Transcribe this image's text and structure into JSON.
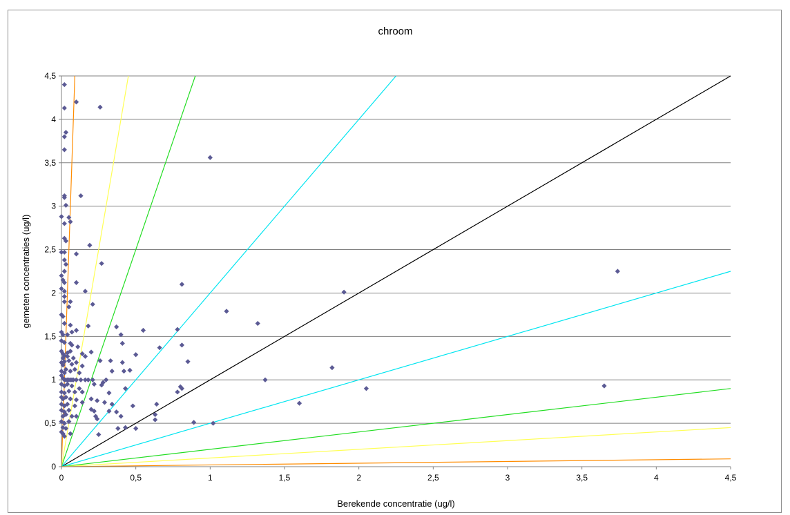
{
  "chart_data": {
    "type": "scatter",
    "title": "chroom",
    "xlabel": "Berekende concentratie (ug/l)",
    "ylabel": "gemeten concentraties (ug/l)",
    "xlim": [
      0,
      4.5
    ],
    "ylim": [
      0,
      4.5
    ],
    "x_ticks": [
      "0",
      "0,5",
      "1",
      "1,5",
      "2",
      "2,5",
      "3",
      "3,5",
      "4",
      "4,5"
    ],
    "y_ticks": [
      "0",
      "0,5",
      "1",
      "1,5",
      "2",
      "2,5",
      "3",
      "3,5",
      "4",
      "4,5"
    ],
    "grid": "horizontal",
    "legend": "none",
    "marker_color": "#5b5a94",
    "reference_lines": [
      {
        "slope": 1,
        "color": "#000000"
      },
      {
        "slope": 2,
        "color": "#00e5f0"
      },
      {
        "slope": 0.5,
        "color": "#00e5f0"
      },
      {
        "slope": 5,
        "color": "#22dd22"
      },
      {
        "slope": 0.2,
        "color": "#22dd22"
      },
      {
        "slope": 10,
        "color": "#ffff55"
      },
      {
        "slope": 0.1,
        "color": "#ffff55"
      },
      {
        "slope": 50,
        "color": "#ff8c00"
      },
      {
        "slope": 0.02,
        "color": "#ff8c00"
      }
    ],
    "points": [
      [
        0.02,
        4.4
      ],
      [
        0.02,
        4.13
      ],
      [
        0.1,
        4.2
      ],
      [
        0.26,
        4.14
      ],
      [
        0.03,
        3.85
      ],
      [
        0.02,
        3.8
      ],
      [
        0.02,
        3.65
      ],
      [
        0.02,
        3.12
      ],
      [
        0.02,
        3.1
      ],
      [
        0.13,
        3.12
      ],
      [
        0.03,
        3.01
      ],
      [
        0.0,
        2.88
      ],
      [
        0.02,
        2.8
      ],
      [
        0.05,
        2.87
      ],
      [
        0.06,
        2.82
      ],
      [
        0.02,
        2.63
      ],
      [
        0.03,
        2.6
      ],
      [
        0.19,
        2.55
      ],
      [
        0.0,
        2.47
      ],
      [
        0.02,
        2.47
      ],
      [
        0.1,
        2.45
      ],
      [
        0.02,
        2.38
      ],
      [
        0.03,
        2.33
      ],
      [
        0.27,
        2.34
      ],
      [
        0.02,
        2.25
      ],
      [
        0.0,
        2.2
      ],
      [
        0.01,
        2.15
      ],
      [
        0.02,
        2.12
      ],
      [
        0.1,
        2.12
      ],
      [
        0.0,
        2.05
      ],
      [
        0.02,
        2.02
      ],
      [
        0.16,
        2.02
      ],
      [
        0.02,
        1.96
      ],
      [
        0.02,
        1.9
      ],
      [
        0.06,
        1.9
      ],
      [
        0.05,
        1.84
      ],
      [
        0.21,
        1.87
      ],
      [
        0.0,
        1.75
      ],
      [
        0.01,
        1.73
      ],
      [
        0.02,
        1.65
      ],
      [
        0.06,
        1.63
      ],
      [
        0.18,
        1.62
      ],
      [
        0.37,
        1.61
      ],
      [
        0.0,
        1.55
      ],
      [
        0.01,
        1.52
      ],
      [
        0.04,
        1.52
      ],
      [
        0.07,
        1.55
      ],
      [
        0.1,
        1.57
      ],
      [
        0.4,
        1.52
      ],
      [
        0.55,
        1.57
      ],
      [
        0.78,
        1.58
      ],
      [
        0.0,
        1.45
      ],
      [
        0.02,
        1.43
      ],
      [
        0.06,
        1.42
      ],
      [
        0.07,
        1.4
      ],
      [
        0.11,
        1.38
      ],
      [
        0.41,
        1.42
      ],
      [
        0.66,
        1.37
      ],
      [
        0.81,
        1.4
      ],
      [
        0.0,
        1.33
      ],
      [
        0.01,
        1.3
      ],
      [
        0.02,
        1.28
      ],
      [
        0.04,
        1.31
      ],
      [
        0.06,
        1.33
      ],
      [
        0.14,
        1.3
      ],
      [
        0.2,
        1.32
      ],
      [
        0.01,
        1.25
      ],
      [
        0.04,
        1.27
      ],
      [
        0.08,
        1.25
      ],
      [
        0.16,
        1.27
      ],
      [
        0.5,
        1.29
      ],
      [
        0.0,
        1.2
      ],
      [
        0.01,
        1.17
      ],
      [
        0.02,
        1.21
      ],
      [
        0.05,
        1.22
      ],
      [
        0.07,
        1.18
      ],
      [
        0.1,
        1.2
      ],
      [
        0.14,
        1.16
      ],
      [
        0.26,
        1.22
      ],
      [
        0.33,
        1.22
      ],
      [
        0.41,
        1.2
      ],
      [
        0.85,
        1.21
      ],
      [
        0.0,
        1.1
      ],
      [
        0.02,
        1.08
      ],
      [
        0.03,
        1.12
      ],
      [
        0.06,
        1.1
      ],
      [
        0.09,
        1.12
      ],
      [
        0.12,
        1.08
      ],
      [
        0.34,
        1.1
      ],
      [
        0.42,
        1.1
      ],
      [
        0.46,
        1.11
      ],
      [
        0.0,
        1.05
      ],
      [
        0.01,
        1.02
      ],
      [
        0.02,
        1.0
      ],
      [
        0.03,
        1.0
      ],
      [
        0.04,
        1.0
      ],
      [
        0.05,
        1.0
      ],
      [
        0.06,
        1.0
      ],
      [
        0.07,
        1.0
      ],
      [
        0.08,
        1.0
      ],
      [
        0.1,
        1.0
      ],
      [
        0.13,
        1.0
      ],
      [
        0.16,
        1.0
      ],
      [
        0.18,
        1.0
      ],
      [
        0.21,
        1.0
      ],
      [
        0.28,
        0.97
      ],
      [
        0.3,
        1.0
      ],
      [
        0.22,
        0.95
      ],
      [
        0.27,
        0.94
      ],
      [
        0.0,
        0.95
      ],
      [
        0.02,
        0.93
      ],
      [
        0.04,
        0.95
      ],
      [
        0.07,
        0.93
      ],
      [
        0.12,
        0.9
      ],
      [
        0.0,
        0.86
      ],
      [
        0.02,
        0.85
      ],
      [
        0.05,
        0.87
      ],
      [
        0.09,
        0.86
      ],
      [
        0.14,
        0.86
      ],
      [
        0.32,
        0.85
      ],
      [
        0.43,
        0.9
      ],
      [
        0.78,
        0.86
      ],
      [
        0.8,
        0.92
      ],
      [
        0.81,
        0.9
      ],
      [
        0.0,
        0.8
      ],
      [
        0.01,
        0.78
      ],
      [
        0.03,
        0.8
      ],
      [
        0.06,
        0.78
      ],
      [
        0.1,
        0.77
      ],
      [
        0.2,
        0.78
      ],
      [
        0.24,
        0.76
      ],
      [
        0.0,
        0.72
      ],
      [
        0.02,
        0.7
      ],
      [
        0.04,
        0.72
      ],
      [
        0.09,
        0.7
      ],
      [
        0.14,
        0.74
      ],
      [
        0.29,
        0.74
      ],
      [
        0.34,
        0.72
      ],
      [
        0.48,
        0.7
      ],
      [
        0.64,
        0.72
      ],
      [
        0.0,
        0.65
      ],
      [
        0.02,
        0.63
      ],
      [
        0.05,
        0.65
      ],
      [
        0.2,
        0.66
      ],
      [
        0.22,
        0.64
      ],
      [
        0.32,
        0.64
      ],
      [
        0.37,
        0.63
      ],
      [
        0.01,
        0.58
      ],
      [
        0.03,
        0.6
      ],
      [
        0.07,
        0.58
      ],
      [
        0.1,
        0.58
      ],
      [
        0.23,
        0.58
      ],
      [
        0.4,
        0.58
      ],
      [
        0.63,
        0.6
      ],
      [
        0.0,
        0.52
      ],
      [
        0.02,
        0.5
      ],
      [
        0.05,
        0.52
      ],
      [
        0.24,
        0.55
      ],
      [
        0.63,
        0.54
      ],
      [
        0.89,
        0.51
      ],
      [
        1.02,
        0.5
      ],
      [
        0.01,
        0.45
      ],
      [
        0.03,
        0.44
      ],
      [
        0.38,
        0.44
      ],
      [
        0.43,
        0.45
      ],
      [
        0.5,
        0.44
      ],
      [
        0.0,
        0.4
      ],
      [
        0.01,
        0.38
      ],
      [
        0.06,
        0.38
      ],
      [
        0.25,
        0.37
      ],
      [
        0.02,
        0.35
      ],
      [
        1.0,
        3.56
      ],
      [
        1.11,
        1.79
      ],
      [
        1.32,
        1.65
      ],
      [
        1.37,
        1.0
      ],
      [
        1.6,
        0.73
      ],
      [
        1.82,
        1.14
      ],
      [
        1.9,
        2.01
      ],
      [
        2.05,
        0.9
      ],
      [
        3.65,
        0.93
      ],
      [
        3.74,
        2.25
      ],
      [
        0.81,
        2.1
      ]
    ]
  }
}
